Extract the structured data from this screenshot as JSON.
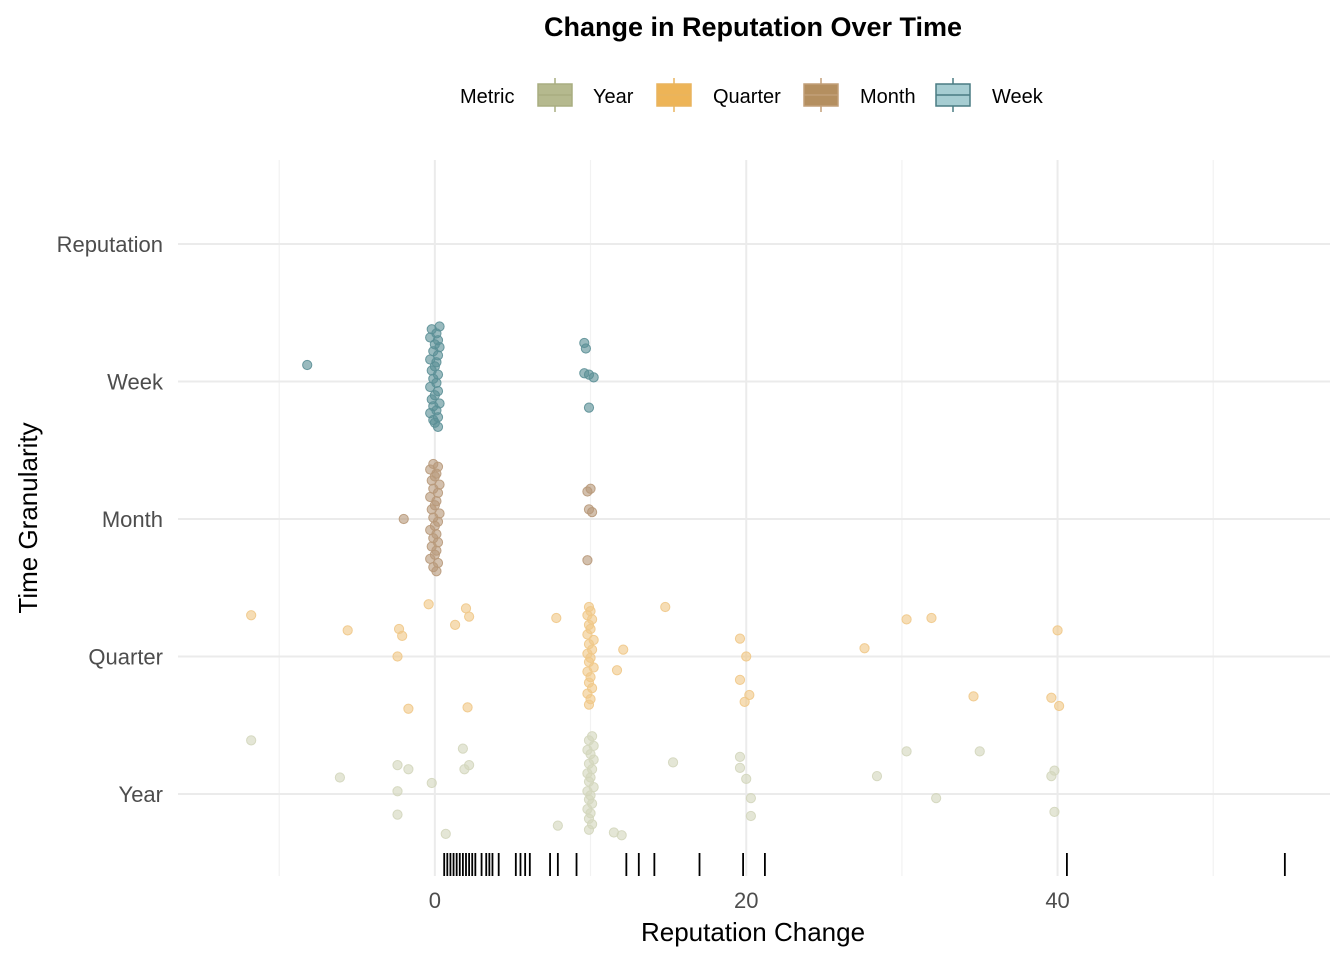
{
  "chart_data": {
    "type": "scatter",
    "title": "Change in Reputation Over Time",
    "xlabel": "Reputation Change",
    "ylabel": "Time Granularity",
    "xlim": [
      -16.5,
      57.5
    ],
    "x_ticks": [
      0,
      20,
      40
    ],
    "x_tick_labels": [
      "0",
      "20",
      "40"
    ],
    "categories": [
      "Year",
      "Quarter",
      "Month",
      "Week",
      "Reputation"
    ],
    "grid": true,
    "legend": {
      "title": "Metric",
      "position": "top",
      "entries": [
        {
          "name": "Year",
          "fill": "#b5b98e",
          "stroke": "#a9ad80"
        },
        {
          "name": "Quarter",
          "fill": "#edb457",
          "stroke": "#e9b45f"
        },
        {
          "name": "Month",
          "fill": "#b48f60",
          "stroke": "#c29f79"
        },
        {
          "name": "Week",
          "fill": "#a6cdd2",
          "stroke": "#4a7c83"
        }
      ]
    },
    "series": [
      {
        "name": "Week",
        "color": "#5b8f96",
        "points": [
          {
            "x": -8.2,
            "y": 4.12
          },
          {
            "x": 9.6,
            "y": 4.28
          },
          {
            "x": 9.7,
            "y": 4.24
          },
          {
            "x": 9.6,
            "y": 4.06
          },
          {
            "x": 9.9,
            "y": 4.05
          },
          {
            "x": 10.2,
            "y": 4.03
          },
          {
            "x": 9.9,
            "y": 3.81
          },
          {
            "x": -0.2,
            "y": 4.38
          },
          {
            "x": 0.3,
            "y": 4.4
          },
          {
            "x": 0.1,
            "y": 4.35
          },
          {
            "x": -0.3,
            "y": 4.32
          },
          {
            "x": 0.2,
            "y": 4.3
          },
          {
            "x": 0.0,
            "y": 4.27
          },
          {
            "x": 0.3,
            "y": 4.25
          },
          {
            "x": -0.1,
            "y": 4.22
          },
          {
            "x": 0.2,
            "y": 4.19
          },
          {
            "x": -0.3,
            "y": 4.16
          },
          {
            "x": 0.1,
            "y": 4.14
          },
          {
            "x": 0.0,
            "y": 4.11
          },
          {
            "x": -0.2,
            "y": 4.08
          },
          {
            "x": 0.2,
            "y": 4.05
          },
          {
            "x": -0.1,
            "y": 4.02
          },
          {
            "x": 0.1,
            "y": 3.99
          },
          {
            "x": -0.3,
            "y": 3.96
          },
          {
            "x": 0.2,
            "y": 3.93
          },
          {
            "x": 0.0,
            "y": 3.9
          },
          {
            "x": -0.2,
            "y": 3.87
          },
          {
            "x": 0.3,
            "y": 3.84
          },
          {
            "x": -0.1,
            "y": 3.82
          },
          {
            "x": 0.1,
            "y": 3.79
          },
          {
            "x": -0.3,
            "y": 3.77
          },
          {
            "x": 0.2,
            "y": 3.74
          },
          {
            "x": -0.1,
            "y": 3.72
          },
          {
            "x": 0.0,
            "y": 3.7
          },
          {
            "x": 0.2,
            "y": 3.67
          }
        ]
      },
      {
        "name": "Month",
        "color": "#b8997a",
        "points": [
          {
            "x": -2.0,
            "y": 3.0
          },
          {
            "x": 10.0,
            "y": 3.22
          },
          {
            "x": 9.8,
            "y": 3.2
          },
          {
            "x": 9.9,
            "y": 3.07
          },
          {
            "x": 10.1,
            "y": 3.05
          },
          {
            "x": 9.8,
            "y": 2.7
          },
          {
            "x": -0.1,
            "y": 3.4
          },
          {
            "x": 0.2,
            "y": 3.38
          },
          {
            "x": -0.3,
            "y": 3.36
          },
          {
            "x": 0.1,
            "y": 3.33
          },
          {
            "x": 0.0,
            "y": 3.31
          },
          {
            "x": -0.2,
            "y": 3.28
          },
          {
            "x": 0.3,
            "y": 3.25
          },
          {
            "x": -0.1,
            "y": 3.22
          },
          {
            "x": 0.2,
            "y": 3.19
          },
          {
            "x": -0.3,
            "y": 3.16
          },
          {
            "x": 0.1,
            "y": 3.13
          },
          {
            "x": 0.0,
            "y": 3.1
          },
          {
            "x": -0.2,
            "y": 3.07
          },
          {
            "x": 0.3,
            "y": 3.04
          },
          {
            "x": -0.1,
            "y": 3.01
          },
          {
            "x": 0.2,
            "y": 2.98
          },
          {
            "x": 0.0,
            "y": 2.95
          },
          {
            "x": -0.3,
            "y": 2.92
          },
          {
            "x": 0.1,
            "y": 2.89
          },
          {
            "x": -0.1,
            "y": 2.86
          },
          {
            "x": 0.2,
            "y": 2.83
          },
          {
            "x": -0.2,
            "y": 2.8
          },
          {
            "x": 0.1,
            "y": 2.77
          },
          {
            "x": 0.0,
            "y": 2.74
          },
          {
            "x": -0.3,
            "y": 2.71
          },
          {
            "x": 0.2,
            "y": 2.68
          },
          {
            "x": -0.1,
            "y": 2.65
          },
          {
            "x": 0.1,
            "y": 2.62
          }
        ]
      },
      {
        "name": "Quarter",
        "color": "#f0c888",
        "points": [
          {
            "x": -11.8,
            "y": 2.3
          },
          {
            "x": -5.6,
            "y": 2.19
          },
          {
            "x": -2.3,
            "y": 2.2
          },
          {
            "x": -2.1,
            "y": 2.15
          },
          {
            "x": -2.4,
            "y": 2.0
          },
          {
            "x": -1.7,
            "y": 1.62
          },
          {
            "x": -0.4,
            "y": 2.38
          },
          {
            "x": 1.3,
            "y": 2.23
          },
          {
            "x": 2.0,
            "y": 2.35
          },
          {
            "x": 2.2,
            "y": 2.29
          },
          {
            "x": 2.1,
            "y": 1.63
          },
          {
            "x": 7.8,
            "y": 2.28
          },
          {
            "x": 9.9,
            "y": 2.36
          },
          {
            "x": 10.0,
            "y": 2.33
          },
          {
            "x": 9.8,
            "y": 2.3
          },
          {
            "x": 10.1,
            "y": 2.27
          },
          {
            "x": 9.9,
            "y": 2.23
          },
          {
            "x": 10.0,
            "y": 2.2
          },
          {
            "x": 9.8,
            "y": 2.16
          },
          {
            "x": 10.2,
            "y": 2.12
          },
          {
            "x": 9.9,
            "y": 2.09
          },
          {
            "x": 10.1,
            "y": 2.05
          },
          {
            "x": 9.8,
            "y": 2.02
          },
          {
            "x": 10.0,
            "y": 1.99
          },
          {
            "x": 9.9,
            "y": 1.96
          },
          {
            "x": 10.2,
            "y": 1.92
          },
          {
            "x": 9.8,
            "y": 1.89
          },
          {
            "x": 10.0,
            "y": 1.85
          },
          {
            "x": 9.9,
            "y": 1.81
          },
          {
            "x": 10.1,
            "y": 1.77
          },
          {
            "x": 9.8,
            "y": 1.73
          },
          {
            "x": 10.0,
            "y": 1.69
          },
          {
            "x": 9.9,
            "y": 1.65
          },
          {
            "x": 12.1,
            "y": 2.05
          },
          {
            "x": 11.7,
            "y": 1.9
          },
          {
            "x": 14.8,
            "y": 2.36
          },
          {
            "x": 19.6,
            "y": 2.13
          },
          {
            "x": 20.0,
            "y": 2.0
          },
          {
            "x": 19.6,
            "y": 1.83
          },
          {
            "x": 20.2,
            "y": 1.72
          },
          {
            "x": 19.9,
            "y": 1.67
          },
          {
            "x": 27.6,
            "y": 2.06
          },
          {
            "x": 30.3,
            "y": 2.27
          },
          {
            "x": 31.9,
            "y": 2.28
          },
          {
            "x": 34.6,
            "y": 1.71
          },
          {
            "x": 39.6,
            "y": 1.7
          },
          {
            "x": 40.1,
            "y": 1.64
          },
          {
            "x": 40.0,
            "y": 2.19
          }
        ]
      },
      {
        "name": "Year",
        "color": "#d3d6bd",
        "points": [
          {
            "x": -11.8,
            "y": 1.39
          },
          {
            "x": -6.1,
            "y": 1.12
          },
          {
            "x": -2.4,
            "y": 1.21
          },
          {
            "x": -1.7,
            "y": 1.18
          },
          {
            "x": -2.4,
            "y": 1.02
          },
          {
            "x": -2.4,
            "y": 0.85
          },
          {
            "x": -0.2,
            "y": 1.08
          },
          {
            "x": 0.7,
            "y": 0.71
          },
          {
            "x": 1.8,
            "y": 1.33
          },
          {
            "x": 2.2,
            "y": 1.21
          },
          {
            "x": 1.9,
            "y": 1.18
          },
          {
            "x": 7.9,
            "y": 0.77
          },
          {
            "x": 10.1,
            "y": 1.42
          },
          {
            "x": 9.9,
            "y": 1.39
          },
          {
            "x": 10.2,
            "y": 1.35
          },
          {
            "x": 9.8,
            "y": 1.32
          },
          {
            "x": 10.0,
            "y": 1.29
          },
          {
            "x": 10.2,
            "y": 1.25
          },
          {
            "x": 9.9,
            "y": 1.22
          },
          {
            "x": 10.1,
            "y": 1.18
          },
          {
            "x": 9.8,
            "y": 1.15
          },
          {
            "x": 10.0,
            "y": 1.12
          },
          {
            "x": 9.9,
            "y": 1.09
          },
          {
            "x": 10.2,
            "y": 1.05
          },
          {
            "x": 9.8,
            "y": 1.02
          },
          {
            "x": 10.0,
            "y": 0.99
          },
          {
            "x": 9.9,
            "y": 0.96
          },
          {
            "x": 10.1,
            "y": 0.93
          },
          {
            "x": 9.8,
            "y": 0.89
          },
          {
            "x": 10.0,
            "y": 0.86
          },
          {
            "x": 9.9,
            "y": 0.82
          },
          {
            "x": 10.1,
            "y": 0.78
          },
          {
            "x": 9.9,
            "y": 0.74
          },
          {
            "x": 11.5,
            "y": 0.72
          },
          {
            "x": 12.0,
            "y": 0.7
          },
          {
            "x": 15.3,
            "y": 1.23
          },
          {
            "x": 19.6,
            "y": 1.27
          },
          {
            "x": 19.6,
            "y": 1.19
          },
          {
            "x": 20.0,
            "y": 1.11
          },
          {
            "x": 20.3,
            "y": 0.97
          },
          {
            "x": 20.3,
            "y": 0.84
          },
          {
            "x": 28.4,
            "y": 1.13
          },
          {
            "x": 30.3,
            "y": 1.31
          },
          {
            "x": 32.2,
            "y": 0.97
          },
          {
            "x": 35.0,
            "y": 1.31
          },
          {
            "x": 39.8,
            "y": 1.17
          },
          {
            "x": 39.6,
            "y": 1.13
          },
          {
            "x": 39.8,
            "y": 0.87
          }
        ]
      }
    ],
    "rug_x": [
      0.6,
      0.8,
      1.0,
      1.2,
      1.4,
      1.6,
      1.8,
      2.0,
      2.2,
      2.4,
      2.6,
      3.0,
      3.3,
      3.5,
      3.7,
      4.1,
      5.2,
      5.5,
      5.8,
      6.1,
      7.4,
      7.9,
      9.1,
      12.3,
      13.1,
      14.1,
      17.0,
      19.8,
      21.2,
      40.6,
      54.6
    ]
  }
}
